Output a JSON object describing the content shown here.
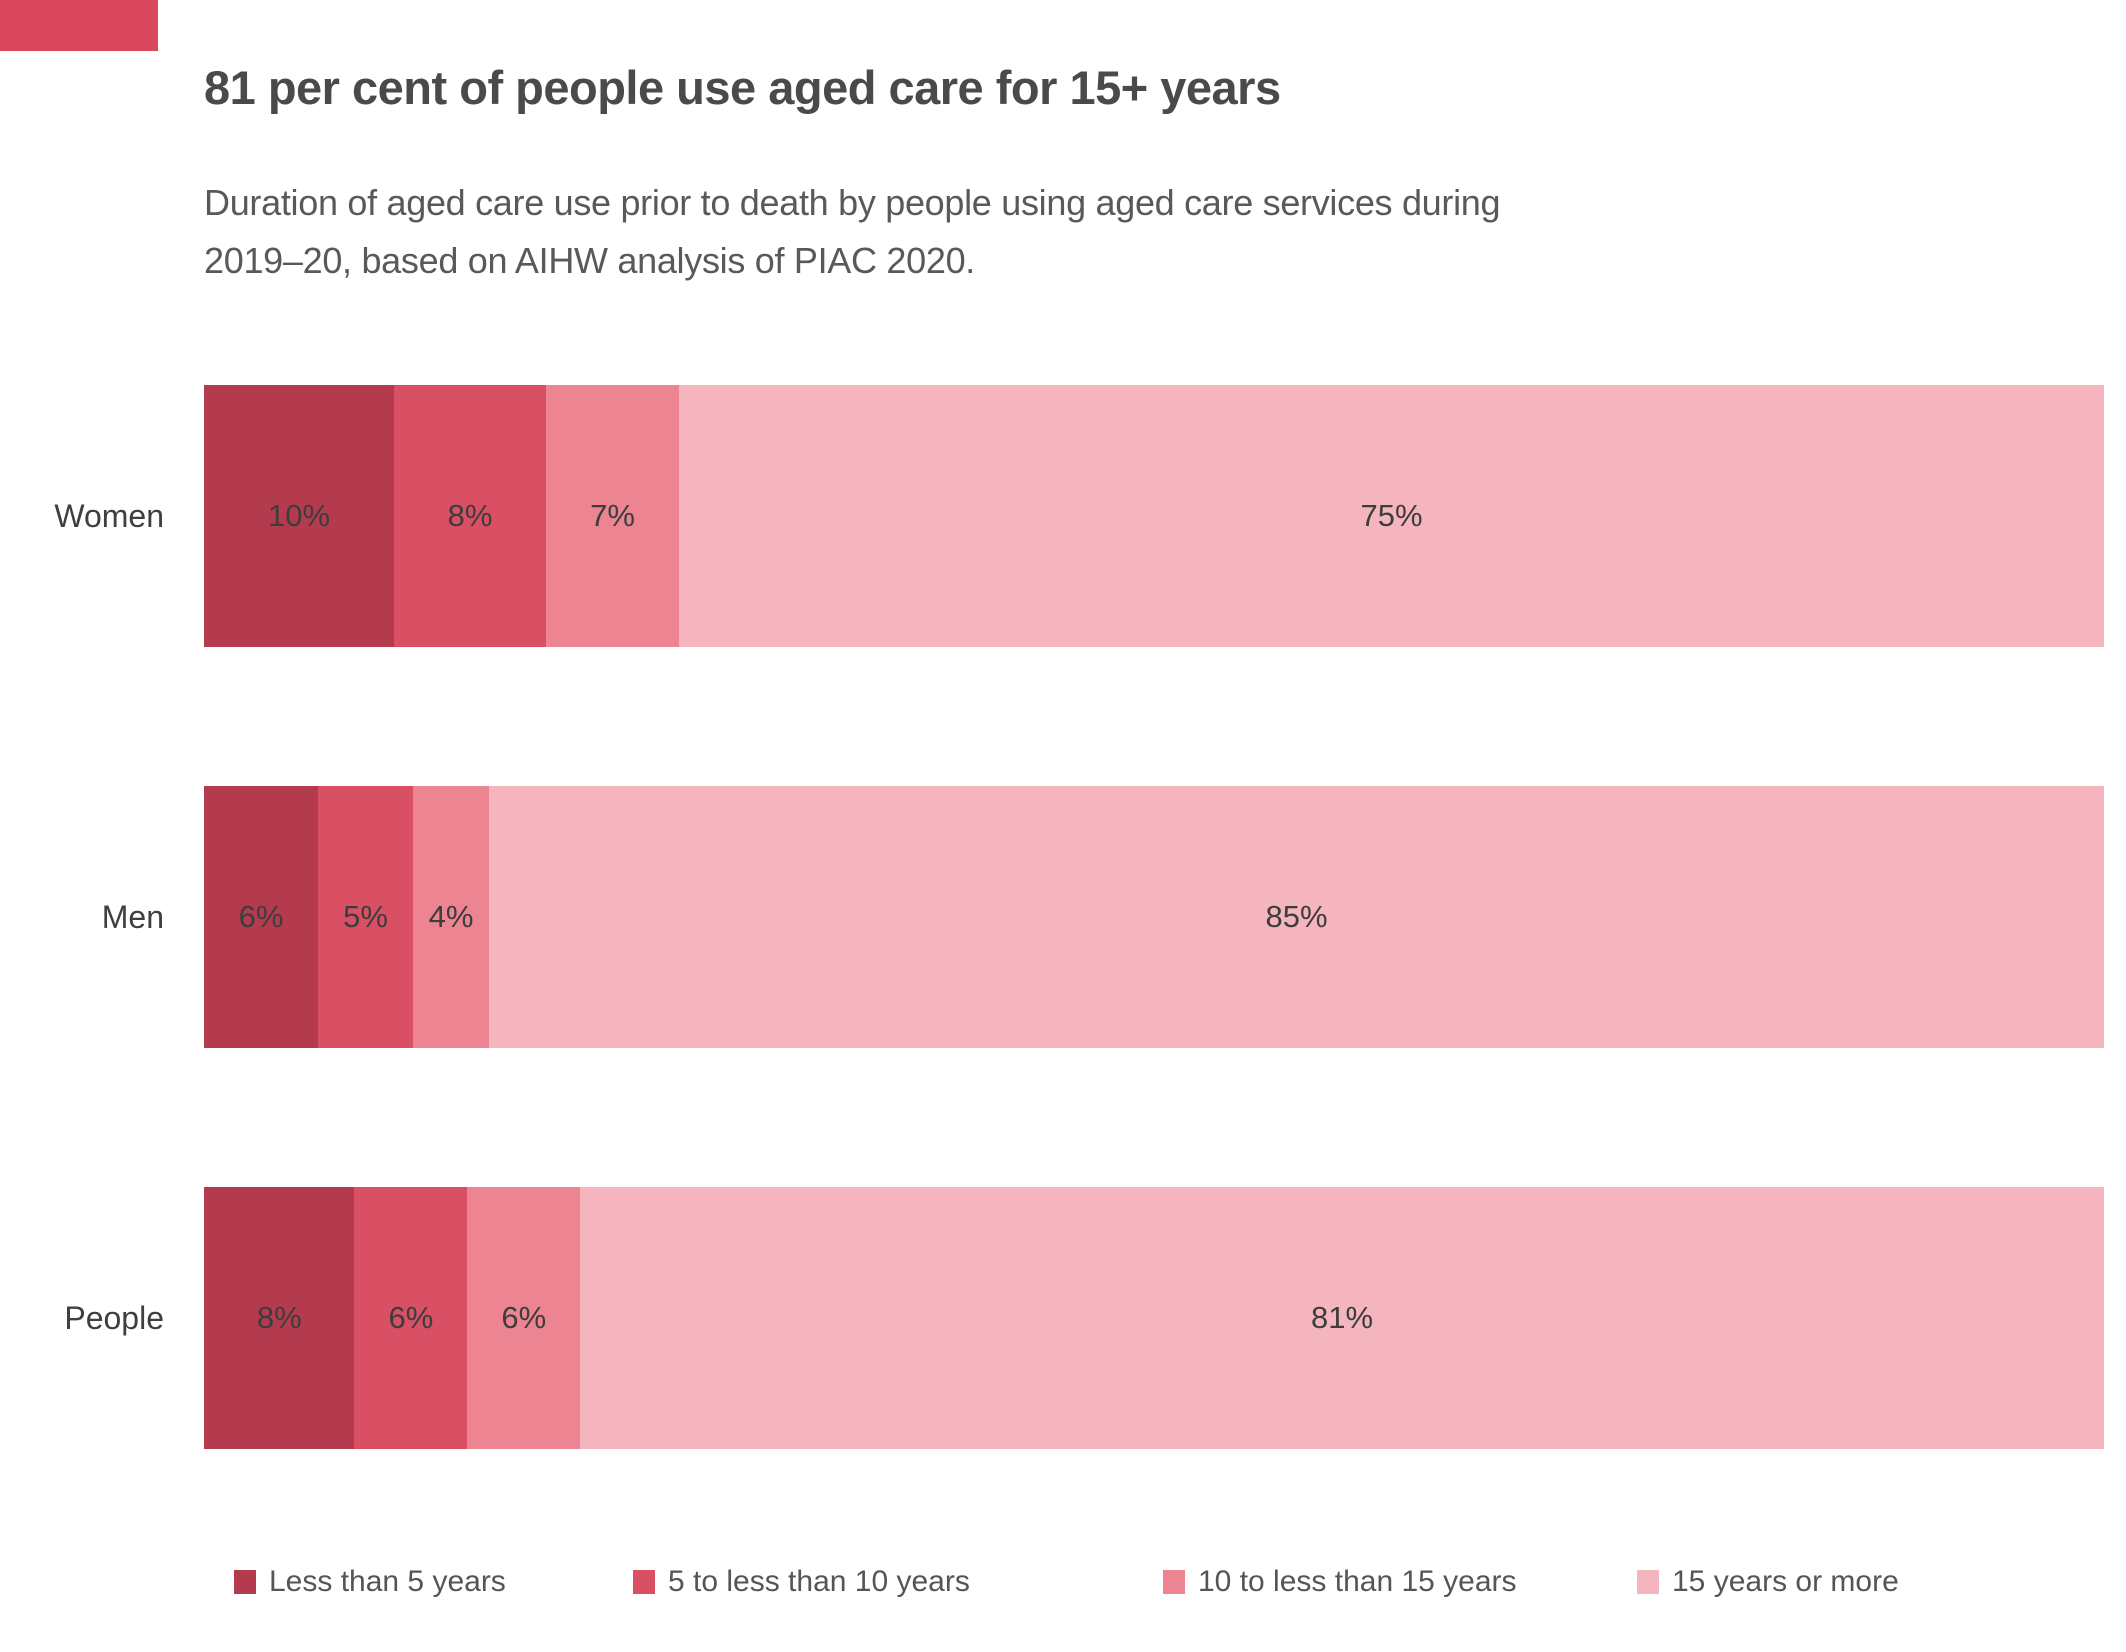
{
  "corner_accent": {
    "color": "#d8475b"
  },
  "header": {
    "title": "81 per cent of people use aged care for 15+ years",
    "subtitle_line1": "Duration of aged care use prior to death by people using aged care services during",
    "subtitle_line2": "2019–20, based on AIHW analysis of PIAC 2020."
  },
  "chart_data": {
    "type": "bar",
    "orientation": "horizontal_stacked",
    "title": "81 per cent of people use aged care for 15+ years",
    "subtitle": "Duration of aged care use prior to death by people using aged care services during 2019–20, based on AIHW analysis of PIAC 2020.",
    "categories": [
      "Women",
      "Men",
      "People"
    ],
    "series": [
      {
        "name": "Less than 5 years",
        "color": "#b43b4e",
        "values": [
          10,
          6,
          8
        ]
      },
      {
        "name": "5 to less than 10 years",
        "color": "#d94f63",
        "values": [
          8,
          5,
          6
        ]
      },
      {
        "name": "10 to less than 15 years",
        "color": "#ec8492",
        "values": [
          7,
          4,
          6
        ]
      },
      {
        "name": "15 years or more",
        "color": "#f5b5bf",
        "values": [
          75,
          85,
          81
        ]
      }
    ],
    "value_suffix": "%",
    "data_labels": true,
    "xlim": [
      0,
      100
    ],
    "grid": false,
    "legend_position": "bottom",
    "text_colors": {
      "title": "#4a4a4a",
      "subtitle": "#595959",
      "labels": "#3d3d3d",
      "legend": "#555555"
    }
  }
}
